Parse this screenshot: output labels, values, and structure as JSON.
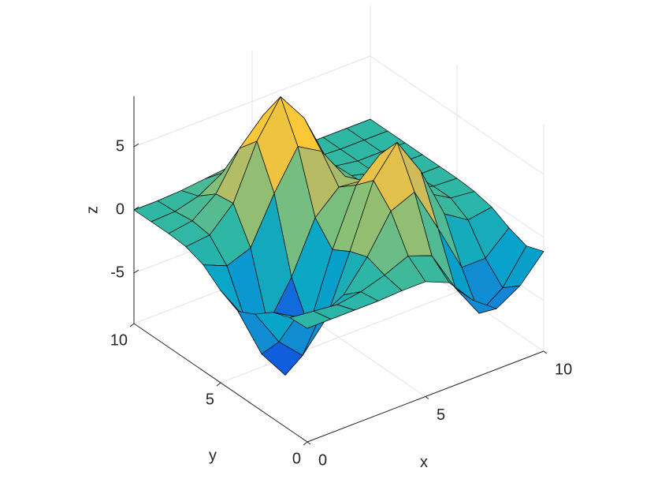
{
  "chart_data": {
    "type": "surface",
    "xlabel": "x",
    "ylabel": "y",
    "zlabel": "z",
    "x": [
      0,
      1,
      2,
      3,
      4,
      5,
      6,
      7,
      8,
      9,
      10
    ],
    "y": [
      0,
      1,
      2,
      3,
      4,
      5,
      6,
      7,
      8,
      9,
      10
    ],
    "z": [
      [
        0,
        0,
        0,
        0,
        0.1,
        0.1,
        -0.7,
        -2.8,
        -4.2,
        -3.1,
        -1.1
      ],
      [
        -0.1,
        -0.3,
        -0.5,
        -0.2,
        0.4,
        1.2,
        0.5,
        -2.8,
        -5.5,
        -4.2,
        -1.6
      ],
      [
        -0.6,
        -1.7,
        -2.4,
        -1.4,
        0.9,
        3.8,
        4.6,
        1.0,
        -2.8,
        -2.8,
        -1.1
      ],
      [
        -1.7,
        -4.6,
        -6.4,
        -4.2,
        0.4,
        5.3,
        7.6,
        4.6,
        0.5,
        -0.7,
        -0.4
      ],
      [
        -2.4,
        -6.5,
        -8.9,
        -5.8,
        -0.4,
        4.0,
        5.7,
        3.9,
        1.2,
        0.1,
        -0.1
      ],
      [
        -1.7,
        -4.5,
        -5.8,
        -2.8,
        1.2,
        2.9,
        2.7,
        1.6,
        0.6,
        0.1,
        0
      ],
      [
        -0.6,
        -1.4,
        -0.7,
        2.9,
        5.9,
        4.8,
        2.1,
        0.6,
        0.1,
        0,
        0
      ],
      [
        -0.1,
        0.1,
        1.9,
        6.1,
        8.9,
        6.5,
        2.4,
        0.5,
        0,
        0,
        0
      ],
      [
        0,
        0.3,
        1.7,
        4.6,
        6.5,
        4.6,
        1.7,
        0.3,
        0,
        0,
        0
      ],
      [
        0,
        0.1,
        0.6,
        1.7,
        2.4,
        1.7,
        0.6,
        0.1,
        0,
        0,
        0
      ],
      [
        0,
        0,
        0.1,
        0.3,
        0.5,
        0.3,
        0.1,
        0,
        0,
        0,
        0
      ]
    ],
    "xlim": [
      0,
      10
    ],
    "ylim": [
      0,
      10
    ],
    "zlim": [
      -9,
      9
    ],
    "xticks": [
      0,
      5,
      10
    ],
    "yticks": [
      0,
      5,
      10
    ],
    "zticks": [
      -5,
      0,
      5
    ],
    "grid": true,
    "edge_color": "#000000",
    "colormap": [
      "#352a87",
      "#0f5cdd",
      "#1481d6",
      "#06a4ca",
      "#2eb7a4",
      "#87bf77",
      "#d1bb59",
      "#fec832",
      "#f9fb0e"
    ]
  }
}
